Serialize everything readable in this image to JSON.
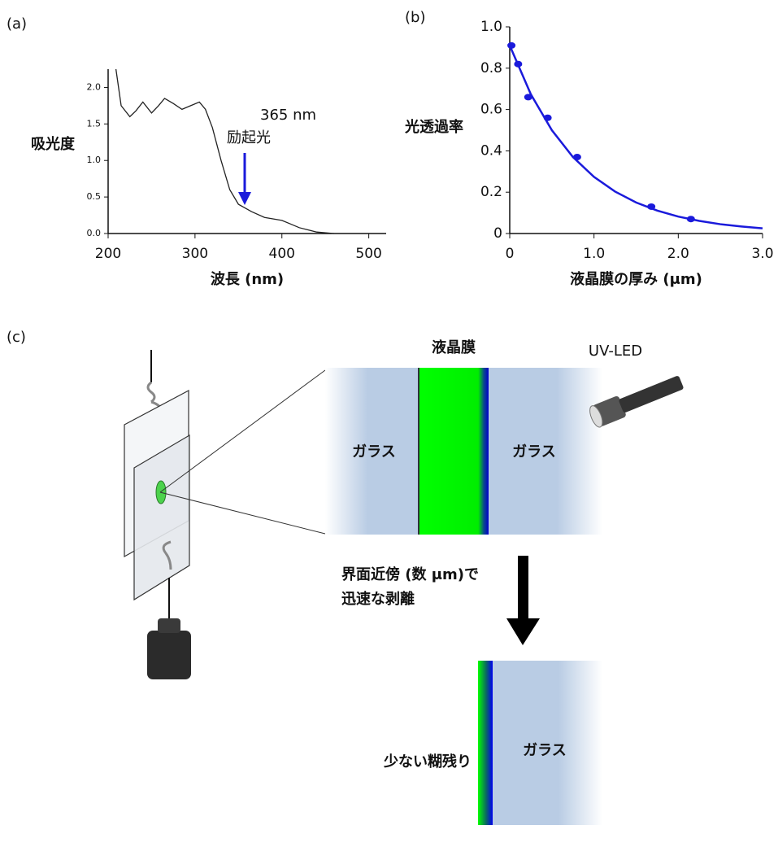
{
  "panel_labels": [
    "(a)",
    "(b)",
    "(c)"
  ],
  "chart_data": [
    {
      "type": "line",
      "xlabel": "波長 (nm)",
      "ylabel": "吸光度",
      "annotation": [
        "365 nm",
        "励起光"
      ],
      "x": [
        209,
        215,
        225,
        232,
        240,
        250,
        258,
        265,
        275,
        285,
        295,
        305,
        312,
        320,
        330,
        340,
        350,
        365,
        380,
        400,
        410,
        420,
        440,
        460
      ],
      "values": [
        2.25,
        1.75,
        1.6,
        1.68,
        1.8,
        1.65,
        1.75,
        1.85,
        1.78,
        1.7,
        1.75,
        1.8,
        1.7,
        1.45,
        1.0,
        0.6,
        0.4,
        0.3,
        0.22,
        0.18,
        0.13,
        0.08,
        0.02,
        0.0
      ],
      "color": "#222222",
      "xlim": [
        200,
        520
      ],
      "ylim": [
        0,
        2.25
      ],
      "xticks": [
        200,
        300,
        400,
        500
      ],
      "yticks": [
        {
          "value": 0,
          "label": "0.0"
        },
        0.5,
        {
          "value": 1,
          "label": "1.0"
        },
        1.5,
        {
          "value": 2,
          "label": "2.0"
        }
      ]
    },
    {
      "type": "scatter",
      "xlabel": "液晶膜の厚み (μm)",
      "ylabel": "光透過率",
      "series": [
        {
          "style": "markers",
          "color": "#1a1adb",
          "x": [
            0.02,
            0.1,
            0.22,
            0.45,
            0.8,
            1.68,
            2.15
          ],
          "values": [
            0.91,
            0.82,
            0.66,
            0.56,
            0.37,
            0.13,
            0.07
          ]
        },
        {
          "style": "line",
          "color": "#1a1adb",
          "x": [
            0,
            0.25,
            0.5,
            0.75,
            1,
            1.25,
            1.5,
            1.75,
            2,
            2.25,
            2.5,
            2.75,
            3
          ],
          "values": [
            0.91,
            0.674,
            0.5,
            0.37,
            0.274,
            0.203,
            0.15,
            0.111,
            0.082,
            0.061,
            0.045,
            0.034,
            0.025
          ]
        }
      ],
      "xlim": [
        0,
        3
      ],
      "ylim": [
        0,
        1
      ],
      "xticks": [
        0,
        {
          "value": 1,
          "label": "1.0"
        },
        {
          "value": 2,
          "label": "2.0"
        },
        {
          "value": 3,
          "label": "3.0"
        }
      ],
      "yticks": [
        0,
        0.2,
        0.4,
        0.6,
        0.8,
        {
          "value": 1,
          "label": "1.0"
        }
      ]
    }
  ],
  "diagram": {
    "film_label": "液晶膜",
    "light_label": "UV-LED",
    "glass_labels": [
      "ガラス",
      "ガラス",
      "ガラス"
    ],
    "peel_note": [
      "界面近傍 (数 μm)で",
      "迅速な剥離"
    ],
    "residue_label": "少ない糊残り"
  }
}
